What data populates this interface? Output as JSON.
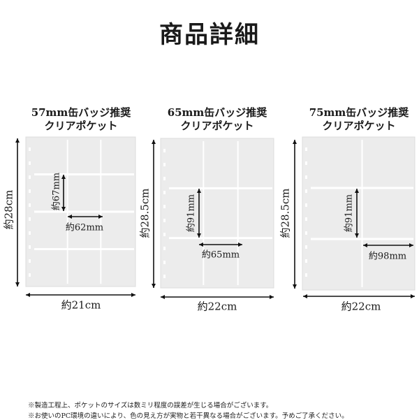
{
  "title": "商品詳細",
  "products": [
    {
      "caption_line1": "57mm缶バッジ推奨",
      "caption_line2": "クリアポケット",
      "height": "約28cm",
      "width": "約21cm",
      "pocket_height": "約67mm",
      "pocket_width": "約62mm",
      "columns": 3,
      "rows": 4
    },
    {
      "caption_line1": "65mm缶バッジ推奨",
      "caption_line2": "クリアポケット",
      "height": "約28.5cm",
      "width": "約22cm",
      "pocket_height": "約91mm",
      "pocket_width": "約65mm",
      "columns": 3,
      "rows": 3
    },
    {
      "caption_line1": "75mm缶バッジ推奨",
      "caption_line2": "クリアポケット",
      "height": "約28.5cm",
      "width": "約22cm",
      "pocket_height": "約91mm",
      "pocket_width": "約98mm",
      "columns": 2,
      "rows": 3
    }
  ],
  "notes": [
    "※製造工程上、ポケットのサイズは数ミリ程度の誤差が生じる場合がございます。",
    "※お使いのPC環境の違いにより、色の見え方が実物と若干異なる場合がございます。予めご了承ください。"
  ],
  "colors": {
    "sheet": "#ececec",
    "sheet_line": "#ffffff",
    "arrow": "#111111"
  }
}
